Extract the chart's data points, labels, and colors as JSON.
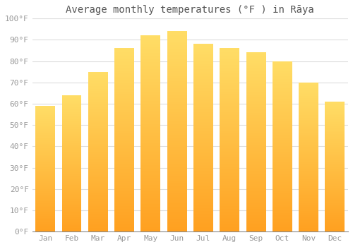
{
  "title": "Average monthly temperatures (°F ) in Rāya",
  "months": [
    "Jan",
    "Feb",
    "Mar",
    "Apr",
    "May",
    "Jun",
    "Jul",
    "Aug",
    "Sep",
    "Oct",
    "Nov",
    "Dec"
  ],
  "values": [
    59,
    64,
    75,
    86,
    92,
    94,
    88,
    86,
    84,
    80,
    70,
    61
  ],
  "bar_color_top": "#FFCC44",
  "bar_color_bottom": "#FFA500",
  "ylim": [
    0,
    100
  ],
  "yticks": [
    0,
    10,
    20,
    30,
    40,
    50,
    60,
    70,
    80,
    90,
    100
  ],
  "ytick_labels": [
    "0°F",
    "10°F",
    "20°F",
    "30°F",
    "40°F",
    "50°F",
    "60°F",
    "70°F",
    "80°F",
    "90°F",
    "100°F"
  ],
  "bg_color": "#FFFFFF",
  "grid_color": "#DDDDDD",
  "font_color": "#999999",
  "title_color": "#555555",
  "font_family": "monospace",
  "title_fontsize": 10,
  "tick_fontsize": 8,
  "bar_width": 0.75,
  "figsize": [
    5.0,
    3.5
  ],
  "dpi": 100
}
